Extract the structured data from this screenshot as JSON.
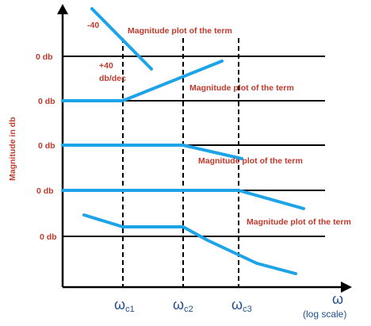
{
  "colors": {
    "curve": "#1ca3e8",
    "label_red": "#c0392b",
    "axis_blue": "#1f4e8c",
    "axis_black": "#000000"
  },
  "y_axis_label": "Magnitude in db",
  "x_axis": {
    "symbol": "ω",
    "scale_note": "(log scale)"
  },
  "corner_frequencies": [
    {
      "main": "ω",
      "sub": "c1"
    },
    {
      "main": "ω",
      "sub": "c2"
    },
    {
      "main": "ω",
      "sub": "c3"
    }
  ],
  "zero_db_labels": [
    "0 db",
    "0 db",
    "0 db",
    "0 db",
    "0 db"
  ],
  "annotations": {
    "slope_minus40": "-40",
    "slope_plus40_line1": "+40",
    "slope_plus40_line2": "db/dec",
    "plot_labels": [
      "Magnitude plot of the term",
      "Magnitude plot of the term",
      "Magnitude plot of the term",
      "Magnitude plot of the term"
    ]
  }
}
